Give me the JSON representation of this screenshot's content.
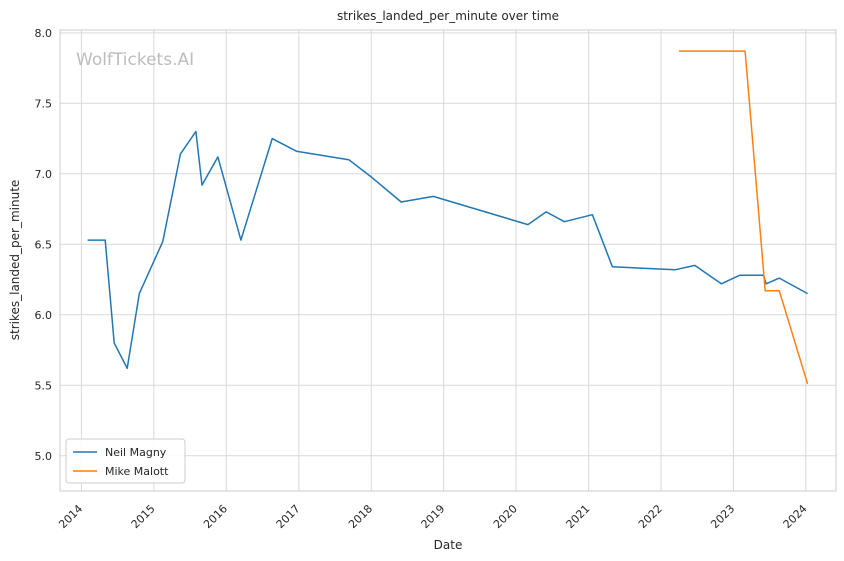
{
  "chart_data": {
    "type": "line",
    "title": "strikes_landed_per_minute over time",
    "xlabel": "Date",
    "ylabel": "strikes_landed_per_minute",
    "watermark": "WolfTickets.AI",
    "xlim": [
      "2013-09-15",
      "2024-06-01"
    ],
    "ylim": [
      4.75,
      8.02
    ],
    "x_ticks": [
      "2014",
      "2015",
      "2016",
      "2017",
      "2018",
      "2019",
      "2020",
      "2021",
      "2022",
      "2023",
      "2024"
    ],
    "y_ticks": [
      "5.0",
      "5.5",
      "6.0",
      "6.5",
      "7.0",
      "7.5",
      "8.0"
    ],
    "grid": true,
    "legend_position": "lower-left",
    "series": [
      {
        "name": "Neil Magny",
        "color": "#1f77b4",
        "points": [
          [
            "2014-02-01",
            6.53
          ],
          [
            "2014-05-01",
            6.53
          ],
          [
            "2014-06-15",
            5.8
          ],
          [
            "2014-08-20",
            5.62
          ],
          [
            "2014-10-20",
            6.15
          ],
          [
            "2015-02-15",
            6.52
          ],
          [
            "2015-05-15",
            7.14
          ],
          [
            "2015-08-01",
            7.3
          ],
          [
            "2015-09-01",
            6.92
          ],
          [
            "2015-11-20",
            7.12
          ],
          [
            "2016-03-15",
            6.53
          ],
          [
            "2016-08-20",
            7.25
          ],
          [
            "2016-12-20",
            7.16
          ],
          [
            "2017-09-10",
            7.1
          ],
          [
            "2017-12-30",
            6.98
          ],
          [
            "2018-06-01",
            6.8
          ],
          [
            "2018-11-10",
            6.84
          ],
          [
            "2020-03-01",
            6.64
          ],
          [
            "2020-06-01",
            6.73
          ],
          [
            "2020-09-01",
            6.66
          ],
          [
            "2021-01-20",
            6.71
          ],
          [
            "2021-05-01",
            6.34
          ],
          [
            "2022-03-15",
            6.32
          ],
          [
            "2022-06-20",
            6.35
          ],
          [
            "2022-11-01",
            6.22
          ],
          [
            "2023-02-01",
            6.28
          ],
          [
            "2023-06-01",
            6.28
          ],
          [
            "2023-06-15",
            6.22
          ],
          [
            "2023-08-20",
            6.26
          ],
          [
            "2024-01-10",
            6.15
          ]
        ]
      },
      {
        "name": "Mike Malott",
        "color": "#ff7f0e",
        "points": [
          [
            "2022-04-01",
            7.87
          ],
          [
            "2023-03-01",
            7.87
          ],
          [
            "2023-06-10",
            6.17
          ],
          [
            "2023-08-20",
            6.17
          ],
          [
            "2024-01-10",
            5.51
          ]
        ]
      }
    ]
  }
}
